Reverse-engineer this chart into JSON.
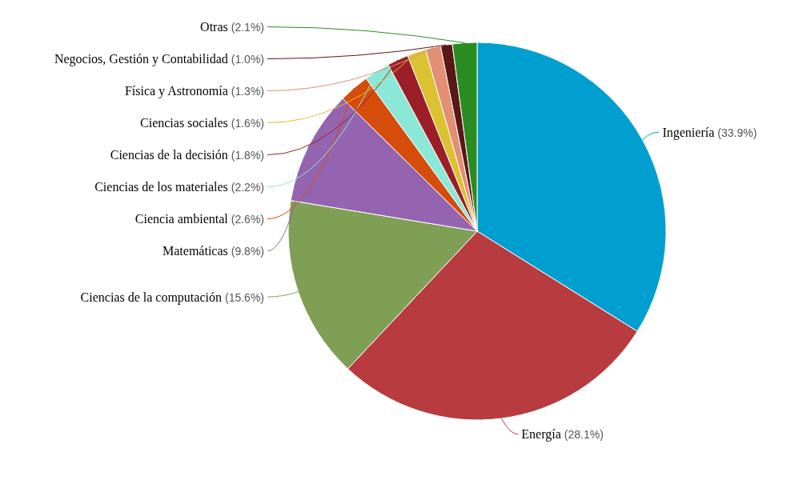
{
  "chart_data": {
    "type": "pie",
    "categories": [
      "Ingeniería",
      "Energía",
      "Ciencias de la computación",
      "Matemáticas",
      "Ciencia ambiental",
      "Ciencias de los materiales",
      "Ciencias de la decisión",
      "Ciencias sociales",
      "Física y Astronomía",
      "Negocios, Gestión y Contabilidad",
      "Otras"
    ],
    "values": [
      33.9,
      28.1,
      15.6,
      9.8,
      2.6,
      2.2,
      1.8,
      1.6,
      1.3,
      1.0,
      2.1
    ],
    "value_labels": [
      "(33.9%)",
      "(28.1%)",
      "(15.6%)",
      "(9.8%)",
      "(2.6%)",
      "(2.2%)",
      "(1.8%)",
      "(1.6%)",
      "(1.3%)",
      "(1.0%)",
      "(2.1%)"
    ],
    "colors": [
      "#009fcf",
      "#b83b3f",
      "#7f9f55",
      "#9464b0",
      "#d54c0b",
      "#8ce8d6",
      "#9c1f28",
      "#dcc232",
      "#e28f73",
      "#5a1717",
      "#2b8c22"
    ]
  }
}
